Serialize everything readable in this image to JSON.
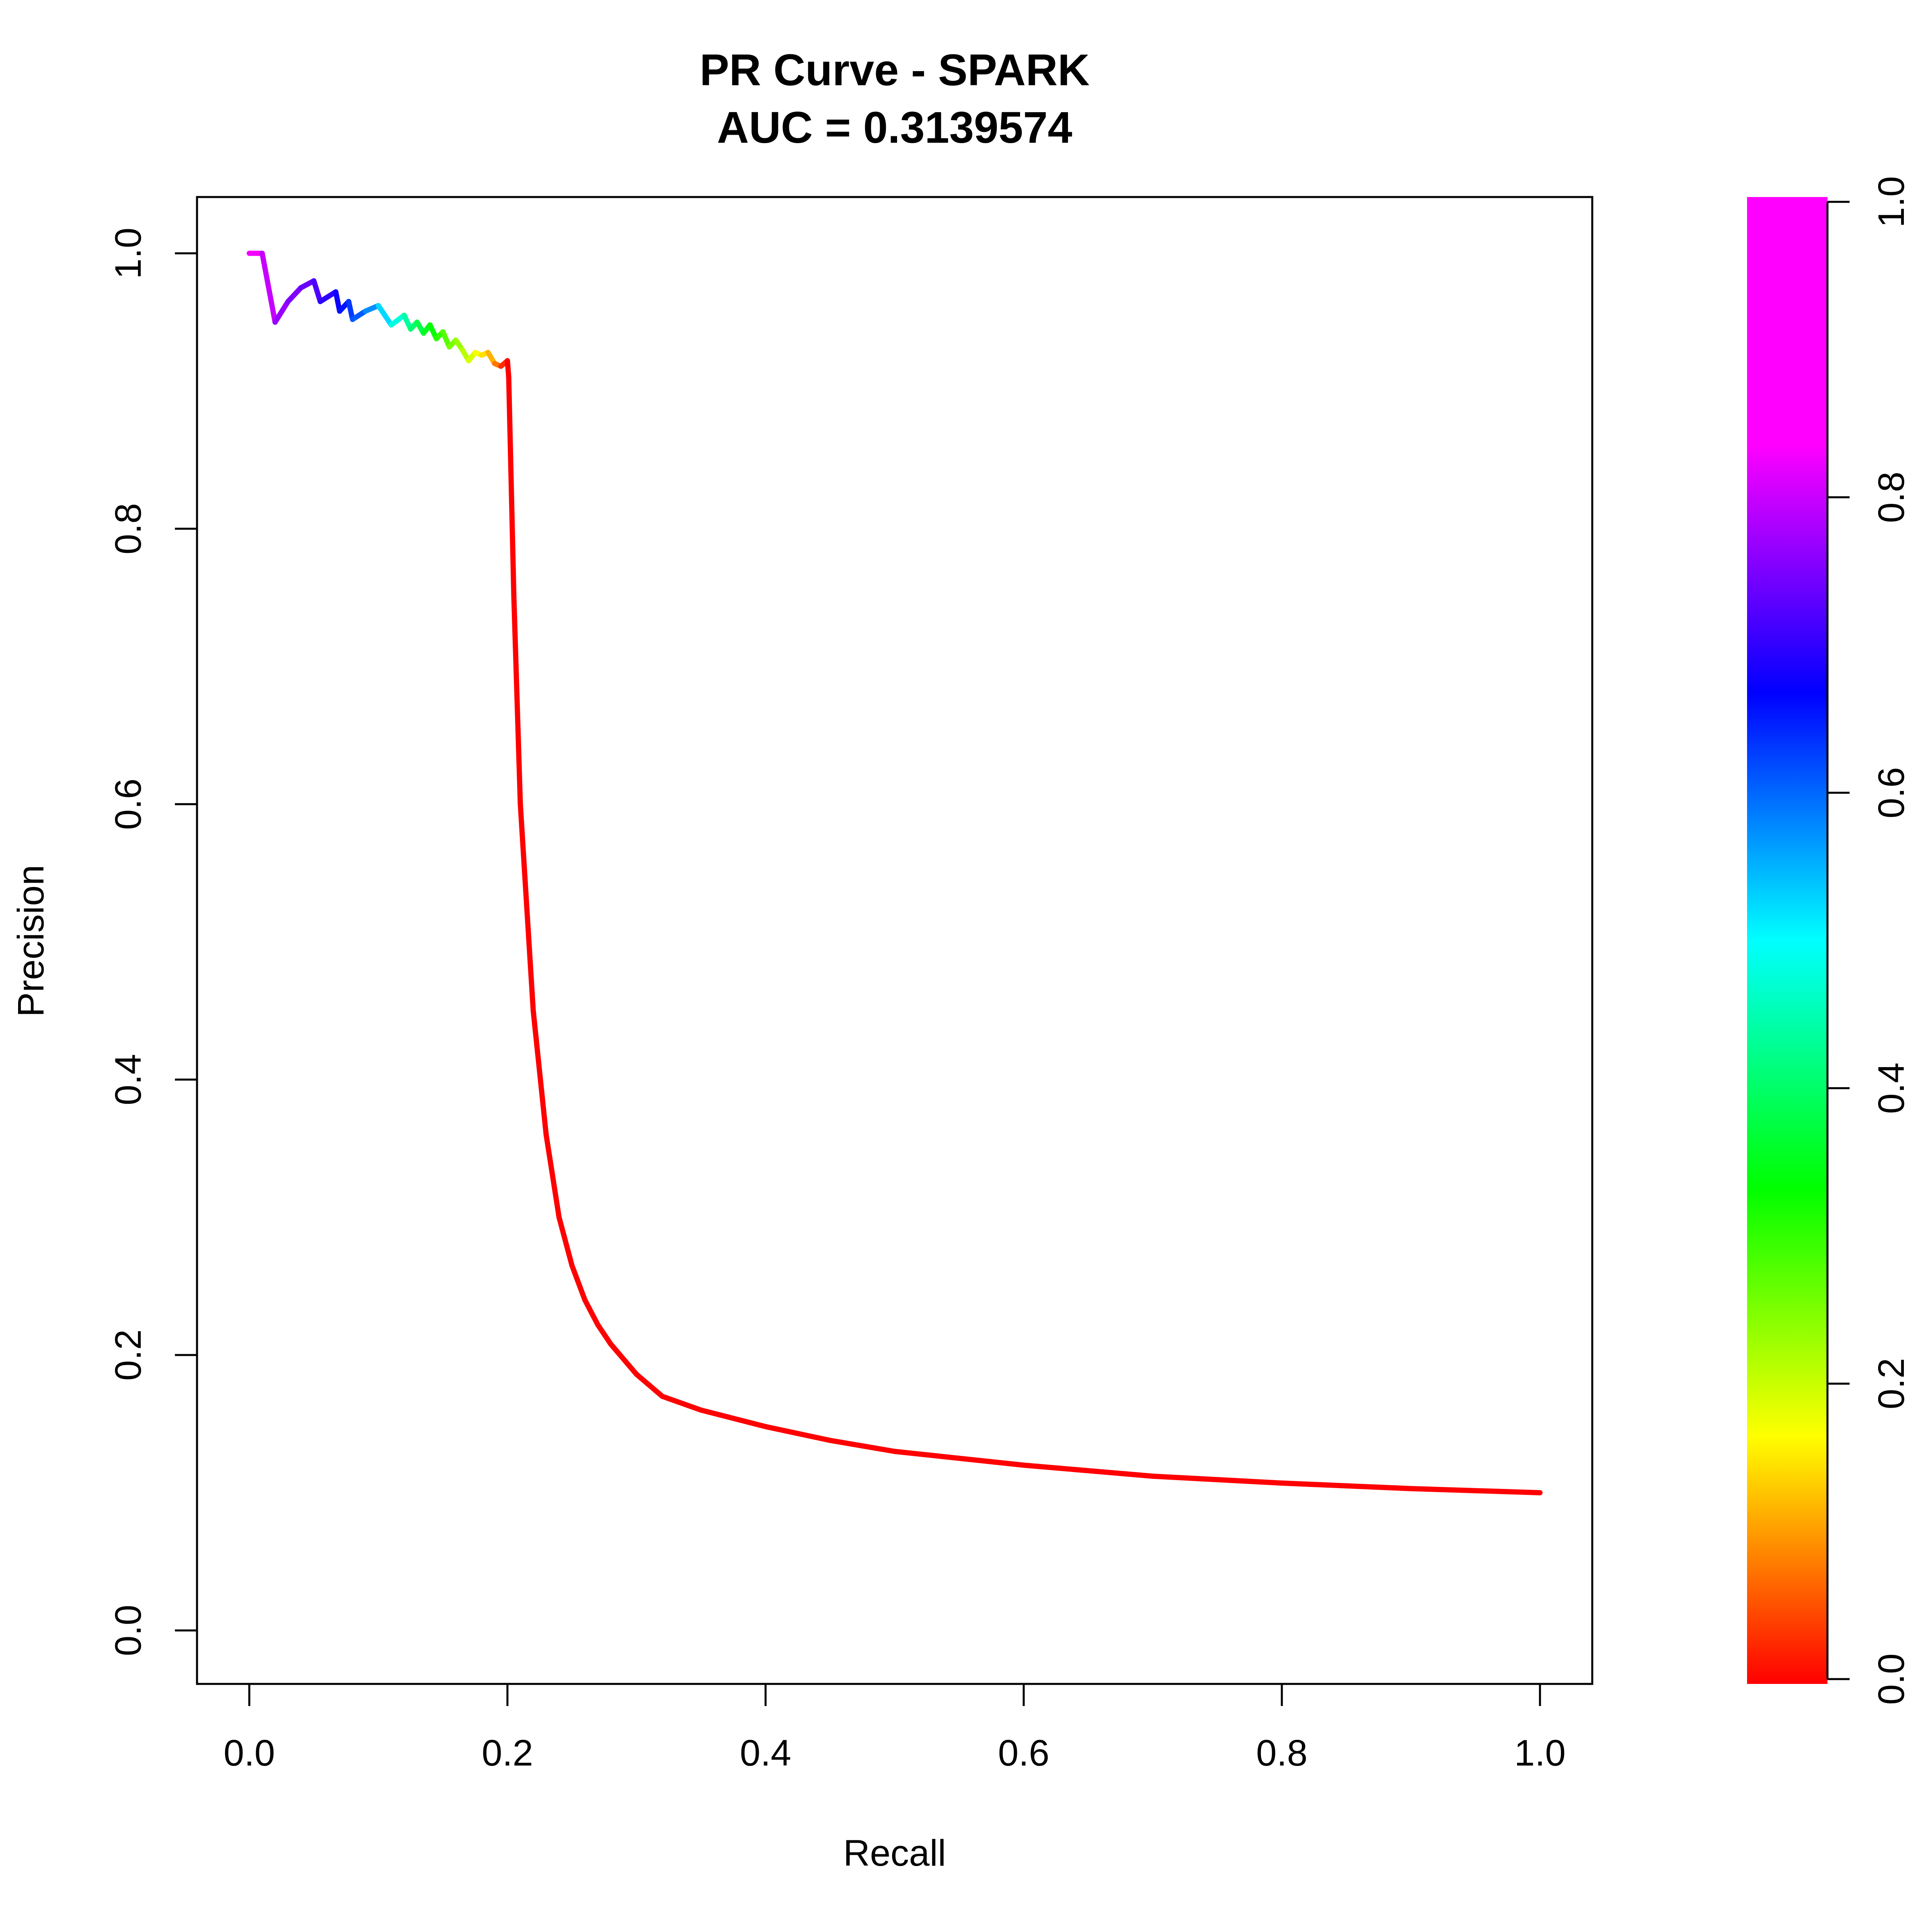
{
  "chart_data": {
    "type": "line",
    "title": "PR Curve - SPARK",
    "subtitle": "AUC = 0.3139574",
    "xlabel": "Recall",
    "ylabel": "Precision",
    "xlim": [
      0.0,
      1.0
    ],
    "ylim": [
      0.0,
      1.0
    ],
    "x_ticks": [
      "0.0",
      "0.2",
      "0.4",
      "0.6",
      "0.8",
      "1.0"
    ],
    "y_ticks": [
      "0.0",
      "0.2",
      "0.4",
      "0.6",
      "0.8",
      "1.0"
    ],
    "grid": false,
    "colorbar": {
      "label": "",
      "range": [
        0.0,
        1.0
      ],
      "ticks": [
        "0.0",
        "0.2",
        "0.4",
        "0.6",
        "0.8",
        "1.0"
      ],
      "palette": "rainbow (red at 0.0 through yellow, green, cyan, blue to magenta at 1.0)"
    },
    "series": [
      {
        "x": [
          0.0,
          0.01,
          0.02,
          0.03,
          0.04,
          0.05,
          0.055,
          0.067,
          0.07,
          0.077,
          0.08,
          0.09,
          0.1,
          0.11,
          0.12,
          0.125,
          0.13,
          0.135,
          0.14,
          0.145,
          0.15,
          0.155,
          0.16,
          0.165,
          0.17,
          0.175,
          0.18,
          0.185,
          0.19,
          0.195,
          0.2,
          0.201,
          0.205,
          0.21,
          0.22,
          0.23,
          0.24,
          0.25,
          0.26,
          0.27,
          0.28,
          0.3,
          0.32,
          0.35,
          0.4,
          0.45,
          0.5,
          0.6,
          0.7,
          0.8,
          0.9,
          1.0
        ],
        "y": [
          1.0,
          1.0,
          0.95,
          0.965,
          0.975,
          0.98,
          0.965,
          0.972,
          0.958,
          0.965,
          0.952,
          0.958,
          0.962,
          0.948,
          0.955,
          0.945,
          0.95,
          0.942,
          0.948,
          0.938,
          0.943,
          0.932,
          0.937,
          0.93,
          0.922,
          0.928,
          0.926,
          0.928,
          0.92,
          0.918,
          0.922,
          0.91,
          0.75,
          0.6,
          0.45,
          0.36,
          0.3,
          0.265,
          0.24,
          0.222,
          0.208,
          0.186,
          0.17,
          0.16,
          0.148,
          0.138,
          0.13,
          0.12,
          0.112,
          0.107,
          0.103,
          0.1
        ],
        "color_values": [
          1.0,
          0.98,
          0.93,
          0.91,
          0.89,
          0.87,
          0.85,
          0.82,
          0.8,
          0.77,
          0.74,
          0.72,
          0.66,
          0.6,
          0.55,
          0.5,
          0.47,
          0.44,
          0.41,
          0.38,
          0.35,
          0.32,
          0.29,
          0.27,
          0.24,
          0.22,
          0.19,
          0.16,
          0.12,
          0.07,
          0.0,
          0.0,
          0.0,
          0.0,
          0.0,
          0.0,
          0.0,
          0.0,
          0.0,
          0.0,
          0.0,
          0.0,
          0.0,
          0.0,
          0.0,
          0.0,
          0.0,
          0.0,
          0.0,
          0.0,
          0.0,
          0.0
        ]
      }
    ]
  }
}
